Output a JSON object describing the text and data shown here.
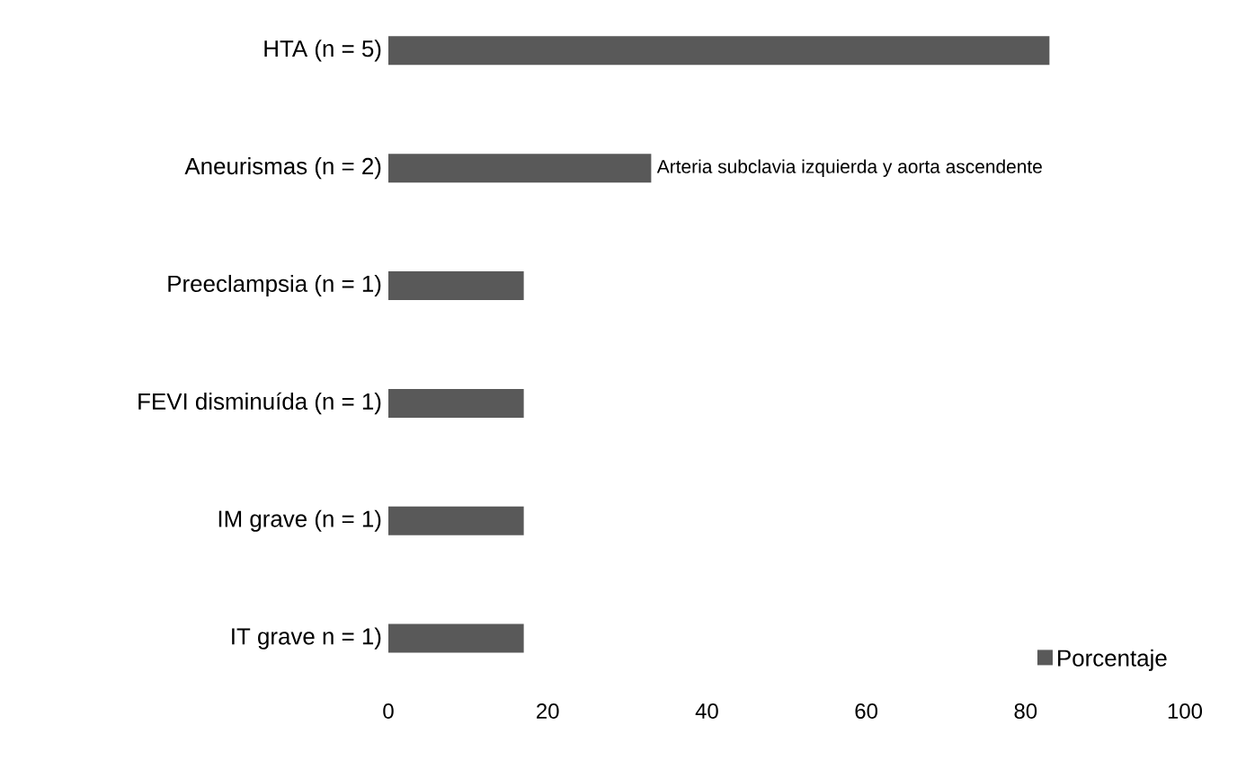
{
  "chart_data": {
    "type": "bar",
    "orientation": "horizontal",
    "categories": [
      "HTA (n = 5)",
      "Aneurismas (n = 2)",
      "Preeclampsia (n = 1)",
      "FEVI disminuída (n = 1)",
      "IM grave (n = 1)",
      "IT grave n = 1)"
    ],
    "series": [
      {
        "name": "Porcentaje",
        "color": "#595959",
        "values": [
          83,
          33,
          17,
          17,
          17,
          17
        ]
      }
    ],
    "xlim": [
      0,
      100
    ],
    "xticks": [
      0,
      20,
      40,
      60,
      80,
      100
    ],
    "annotations": [
      {
        "text": "Arteria subclavia izquierda y aorta ascendente",
        "x": 33,
        "y": "Aneurismas (n = 2)"
      }
    ],
    "legend": "bottom right",
    "grid": false
  }
}
